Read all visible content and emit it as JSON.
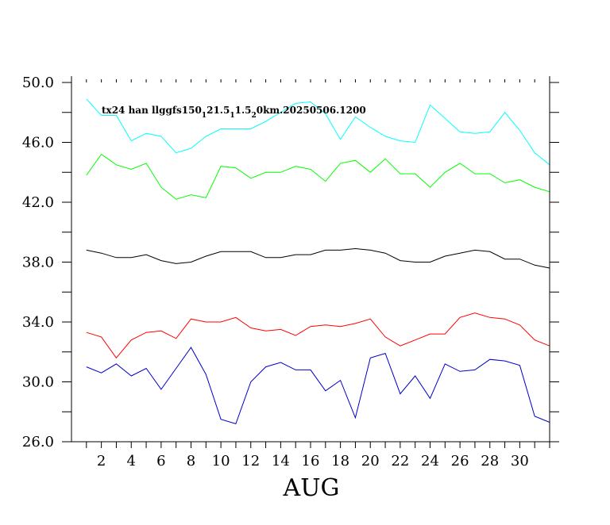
{
  "chart_data": {
    "type": "line",
    "title": "",
    "annotation": "tx24 han llggfs150_1 21.5_1 1.5_2 0km.20250506.1200",
    "annotation_parts": [
      {
        "text": "tx24 han llggfs150",
        "sub": false
      },
      {
        "text": "1",
        "sub": true
      },
      {
        "text": "21.5",
        "sub": false
      },
      {
        "text": "1",
        "sub": true
      },
      {
        "text": "1.5",
        "sub": false
      },
      {
        "text": "2",
        "sub": true
      },
      {
        "text": "0km.20250506.1200",
        "sub": false
      }
    ],
    "xlabel": "AUG",
    "ylabel": "",
    "xlim": [
      0,
      32
    ],
    "ylim": [
      26.0,
      50.0
    ],
    "x_ticks": [
      2,
      4,
      6,
      8,
      10,
      12,
      14,
      16,
      18,
      20,
      22,
      24,
      26,
      28,
      30
    ],
    "x_tick_labels": [
      "2",
      "4",
      "6",
      "8",
      "10",
      "12",
      "14",
      "16",
      "18",
      "20",
      "22",
      "24",
      "26",
      "28",
      "30"
    ],
    "y_ticks": [
      26.0,
      30.0,
      34.0,
      38.0,
      42.0,
      46.0,
      50.0
    ],
    "y_tick_labels": [
      "26.0",
      "30.0",
      "34.0",
      "38.0",
      "42.0",
      "46.0",
      "50.0"
    ],
    "grid": false,
    "x": [
      1,
      2,
      3,
      4,
      5,
      6,
      7,
      8,
      9,
      10,
      11,
      12,
      13,
      14,
      15,
      16,
      17,
      18,
      19,
      20,
      21,
      22,
      23,
      24,
      25,
      26,
      27,
      28,
      29,
      30,
      31,
      32
    ],
    "series": [
      {
        "color": "#00ffff",
        "values": [
          48.9,
          47.8,
          47.8,
          46.1,
          46.6,
          46.4,
          45.3,
          45.6,
          46.4,
          46.9,
          46.9,
          46.9,
          47.4,
          48.0,
          48.6,
          48.7,
          47.9,
          46.2,
          47.7,
          47.0,
          46.4,
          46.1,
          46.0,
          48.5,
          47.6,
          46.7,
          46.6,
          46.7,
          48.0,
          46.8,
          45.3,
          44.5
        ]
      },
      {
        "color": "#00ff00",
        "values": [
          43.8,
          45.2,
          44.5,
          44.2,
          44.6,
          43.0,
          42.2,
          42.5,
          42.3,
          44.4,
          44.3,
          43.6,
          44.0,
          44.0,
          44.4,
          44.2,
          43.4,
          44.6,
          44.8,
          44.0,
          44.9,
          43.9,
          43.9,
          43.0,
          44.0,
          44.6,
          43.9,
          43.9,
          43.3,
          43.5,
          43.0,
          42.7
        ]
      },
      {
        "color": "#000000",
        "values": [
          38.8,
          38.6,
          38.3,
          38.3,
          38.5,
          38.1,
          37.9,
          38.0,
          38.4,
          38.7,
          38.7,
          38.7,
          38.3,
          38.3,
          38.5,
          38.5,
          38.8,
          38.8,
          38.9,
          38.8,
          38.6,
          38.1,
          38.0,
          38.0,
          38.4,
          38.6,
          38.8,
          38.7,
          38.2,
          38.2,
          37.8,
          37.6
        ]
      },
      {
        "color": "#ff0000",
        "values": [
          33.3,
          33.0,
          31.6,
          32.8,
          33.3,
          33.4,
          32.9,
          34.2,
          34.0,
          34.0,
          34.3,
          33.6,
          33.4,
          33.5,
          33.1,
          33.7,
          33.8,
          33.7,
          33.9,
          34.2,
          33.0,
          32.4,
          32.8,
          33.2,
          33.2,
          34.3,
          34.6,
          34.3,
          34.2,
          33.8,
          32.8,
          32.4
        ]
      },
      {
        "color": "#0000cc",
        "values": [
          31.0,
          30.6,
          31.2,
          30.4,
          30.9,
          29.5,
          30.9,
          32.3,
          30.5,
          27.5,
          27.2,
          30.0,
          31.0,
          31.3,
          30.8,
          30.8,
          29.4,
          30.1,
          27.6,
          31.6,
          31.9,
          29.2,
          30.4,
          28.9,
          31.2,
          30.7,
          30.8,
          31.5,
          31.4,
          31.1,
          27.7,
          27.3
        ]
      }
    ]
  }
}
